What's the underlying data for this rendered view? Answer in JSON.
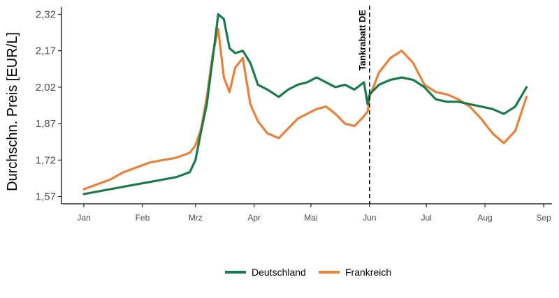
{
  "chart_data": {
    "type": "line",
    "title": "",
    "xlabel": "",
    "ylabel": "Durchschn. Preis [EUR/L]",
    "x_ticks": [
      "Jan",
      "Feb",
      "Mrz",
      "Apr",
      "Mai",
      "Jun",
      "Jul",
      "Aug",
      "Sep"
    ],
    "y_ticks": [
      "1,57",
      "1,72",
      "1,87",
      "2,02",
      "2,17",
      "2,32"
    ],
    "ylim": [
      1.54,
      2.35
    ],
    "grid": false,
    "legend_position": "bottom",
    "annotation": {
      "label": "Tankrabatt DE",
      "x": "2022-06-01",
      "style": "dashed vertical line"
    },
    "series": [
      {
        "name": "Deutschland",
        "color": "#1a7a4c",
        "x": [
          "2022-01-01",
          "2022-01-08",
          "2022-01-15",
          "2022-01-22",
          "2022-01-29",
          "2022-02-05",
          "2022-02-12",
          "2022-02-19",
          "2022-02-26",
          "2022-03-01",
          "2022-03-04",
          "2022-03-07",
          "2022-03-10",
          "2022-03-13",
          "2022-03-16",
          "2022-03-19",
          "2022-03-22",
          "2022-03-26",
          "2022-03-30",
          "2022-04-03",
          "2022-04-08",
          "2022-04-14",
          "2022-04-19",
          "2022-04-24",
          "2022-04-29",
          "2022-05-04",
          "2022-05-09",
          "2022-05-14",
          "2022-05-19",
          "2022-05-24",
          "2022-05-29",
          "2022-05-31",
          "2022-06-01",
          "2022-06-06",
          "2022-06-12",
          "2022-06-18",
          "2022-06-24",
          "2022-06-30",
          "2022-07-06",
          "2022-07-12",
          "2022-07-18",
          "2022-07-24",
          "2022-07-30",
          "2022-08-05",
          "2022-08-11",
          "2022-08-17",
          "2022-08-23"
        ],
        "values": [
          1.58,
          1.59,
          1.6,
          1.61,
          1.62,
          1.63,
          1.64,
          1.65,
          1.67,
          1.72,
          1.84,
          1.95,
          2.13,
          2.32,
          2.3,
          2.18,
          2.16,
          2.17,
          2.12,
          2.03,
          2.01,
          1.98,
          2.01,
          2.03,
          2.04,
          2.06,
          2.04,
          2.02,
          2.03,
          2.01,
          2.04,
          1.95,
          1.99,
          2.03,
          2.05,
          2.06,
          2.05,
          2.02,
          1.97,
          1.96,
          1.96,
          1.95,
          1.94,
          1.93,
          1.91,
          1.94,
          2.02
        ]
      },
      {
        "name": "Frankreich",
        "color": "#e8813a",
        "x": [
          "2022-01-01",
          "2022-01-08",
          "2022-01-15",
          "2022-01-22",
          "2022-01-29",
          "2022-02-05",
          "2022-02-12",
          "2022-02-19",
          "2022-02-26",
          "2022-03-01",
          "2022-03-04",
          "2022-03-07",
          "2022-03-10",
          "2022-03-13",
          "2022-03-16",
          "2022-03-19",
          "2022-03-22",
          "2022-03-26",
          "2022-03-30",
          "2022-04-03",
          "2022-04-08",
          "2022-04-14",
          "2022-04-19",
          "2022-04-24",
          "2022-04-29",
          "2022-05-04",
          "2022-05-09",
          "2022-05-14",
          "2022-05-19",
          "2022-05-24",
          "2022-05-29",
          "2022-05-31",
          "2022-06-01",
          "2022-06-06",
          "2022-06-12",
          "2022-06-18",
          "2022-06-24",
          "2022-06-30",
          "2022-07-06",
          "2022-07-12",
          "2022-07-18",
          "2022-07-24",
          "2022-07-30",
          "2022-08-05",
          "2022-08-11",
          "2022-08-17",
          "2022-08-23"
        ],
        "values": [
          1.6,
          1.62,
          1.64,
          1.67,
          1.69,
          1.71,
          1.72,
          1.73,
          1.75,
          1.78,
          1.85,
          1.98,
          2.15,
          2.26,
          2.06,
          2.0,
          2.1,
          2.14,
          1.95,
          1.88,
          1.83,
          1.81,
          1.85,
          1.89,
          1.91,
          1.93,
          1.94,
          1.91,
          1.87,
          1.86,
          1.9,
          1.92,
          1.98,
          2.08,
          2.14,
          2.17,
          2.12,
          2.03,
          2.0,
          1.99,
          1.97,
          1.94,
          1.89,
          1.83,
          1.79,
          1.84,
          1.98
        ]
      }
    ]
  }
}
